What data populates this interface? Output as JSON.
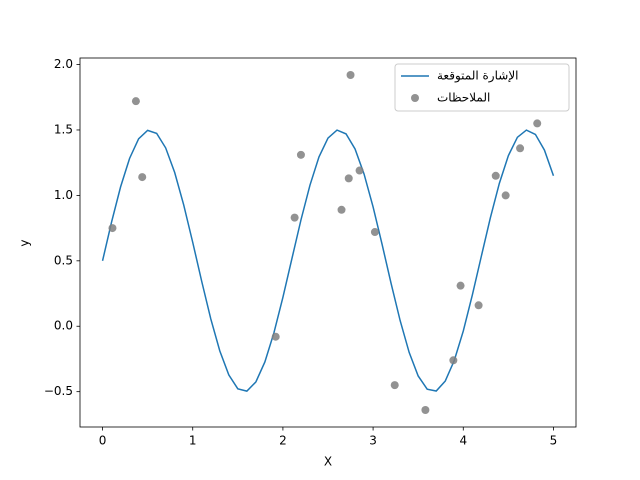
{
  "chart_data": {
    "type": "line",
    "xlabel": "X",
    "ylabel": "y",
    "xlim": [
      -0.25,
      5.25
    ],
    "ylim": [
      -0.77,
      2.05
    ],
    "xticks": [
      0,
      1,
      2,
      3,
      4,
      5
    ],
    "yticks": [
      {
        "value": -0.5,
        "label": "−0.5"
      },
      {
        "value": 0,
        "label": "0.0"
      },
      0.5,
      {
        "value": 1,
        "label": "1.0"
      },
      1.5,
      {
        "value": 2,
        "label": "2.0"
      }
    ],
    "legend": "upper right",
    "series": [
      {
        "name": "الإشارة المتوقعة",
        "type": "line",
        "color": "#1f77b4",
        "x": [
          0,
          0.1,
          0.2,
          0.3,
          0.4,
          0.5,
          0.6,
          0.7,
          0.8,
          0.9,
          1,
          1.1,
          1.2,
          1.3,
          1.4,
          1.5,
          1.6,
          1.7,
          1.8,
          1.9,
          2,
          2.1,
          2.2,
          2.3,
          2.4,
          2.5,
          2.6,
          2.7,
          2.8,
          2.9,
          3,
          3.1,
          3.2,
          3.3,
          3.4,
          3.5,
          3.6,
          3.7,
          3.8,
          3.9,
          4,
          4.1,
          4.2,
          4.3,
          4.4,
          4.5,
          4.6,
          4.7,
          4.8,
          4.9,
          5
        ],
        "values": [
          0.5,
          0.796,
          1.065,
          1.283,
          1.432,
          1.497,
          1.474,
          1.363,
          1.175,
          0.927,
          0.641,
          0.342,
          0.057,
          -0.188,
          -0.372,
          -0.478,
          -0.496,
          -0.426,
          -0.273,
          -0.051,
          0.221,
          0.517,
          0.812,
          1.078,
          1.294,
          1.438,
          1.499,
          1.47,
          1.355,
          1.163,
          0.912,
          0.625,
          0.326,
          0.043,
          -0.2,
          -0.38,
          -0.481,
          -0.495,
          -0.419,
          -0.262,
          -0.037,
          0.237,
          0.534,
          0.828,
          1.092,
          1.304,
          1.444,
          1.499,
          1.466,
          1.346,
          1.15
        ]
      },
      {
        "name": "الملاحظات",
        "type": "scatter",
        "color": "#7f7f7f",
        "x": [
          0.11,
          0.37,
          0.44,
          1.92,
          2.13,
          2.2,
          2.65,
          2.73,
          2.75,
          2.85,
          3.02,
          3.24,
          3.58,
          3.89,
          3.97,
          4.17,
          4.36,
          4.47,
          4.63,
          4.82
        ],
        "values": [
          0.75,
          1.72,
          1.14,
          -0.08,
          0.83,
          1.31,
          0.89,
          1.13,
          1.92,
          1.19,
          0.72,
          -0.45,
          -0.64,
          -0.26,
          0.31,
          0.16,
          1.15,
          1,
          1.36,
          1.55
        ]
      }
    ]
  }
}
